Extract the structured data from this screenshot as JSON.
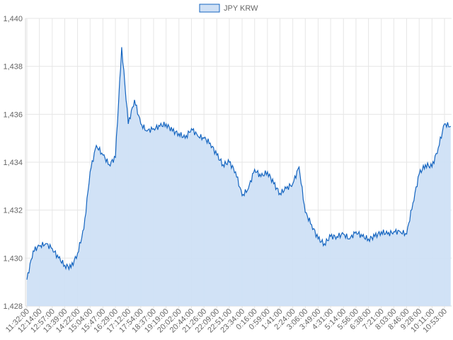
{
  "chart_data": {
    "type": "area",
    "title": "",
    "xlabel": "",
    "ylabel": "",
    "ylim": [
      1428,
      1440
    ],
    "y_ticks": [
      "1,428",
      "1,430",
      "1,432",
      "1,434",
      "1,436",
      "1,438",
      "1,440"
    ],
    "grid": true,
    "legend_position": "top-center",
    "colors": {
      "line": "#1565c0",
      "fill": "#cfe0f5"
    },
    "x_ticks": [
      "11:32:00",
      "12:14:00",
      "12:57:00",
      "13:39:00",
      "14:22:00",
      "15:04:00",
      "15:47:00",
      "16:29:00",
      "17:12:00",
      "17:54:00",
      "18:37:00",
      "19:19:00",
      "20:02:00",
      "20:44:00",
      "21:26:00",
      "22:09:00",
      "22:51:00",
      "23:34:00",
      "0:16:00",
      "0:59:00",
      "1:41:00",
      "2:24:00",
      "3:06:00",
      "3:49:00",
      "4:31:00",
      "5:14:00",
      "5:56:00",
      "6:38:00",
      "7:21:00",
      "8:03:00",
      "8:46:00",
      "9:28:00",
      "10:11:00",
      "10:53:00"
    ],
    "series": [
      {
        "name": "JPY KRW",
        "x": [
          "11:32:00",
          "11:53:00",
          "12:14:00",
          "12:35:00",
          "12:57:00",
          "13:18:00",
          "13:39:00",
          "14:00:00",
          "14:22:00",
          "14:43:00",
          "15:04:00",
          "15:25:00",
          "15:47:00",
          "16:08:00",
          "16:29:00",
          "16:50:00",
          "17:12:00",
          "17:33:00",
          "17:54:00",
          "18:15:00",
          "18:37:00",
          "18:58:00",
          "19:19:00",
          "19:40:00",
          "20:02:00",
          "20:23:00",
          "20:44:00",
          "21:05:00",
          "21:26:00",
          "21:47:00",
          "22:09:00",
          "22:30:00",
          "22:51:00",
          "23:12:00",
          "23:34:00",
          "23:55:00",
          "0:16:00",
          "0:37:00",
          "0:59:00",
          "1:20:00",
          "1:41:00",
          "2:02:00",
          "2:24:00",
          "2:45:00",
          "3:06:00",
          "3:27:00",
          "3:49:00",
          "4:10:00",
          "4:31:00",
          "4:52:00",
          "5:14:00",
          "5:35:00",
          "5:56:00",
          "6:17:00",
          "6:38:00",
          "6:59:00",
          "7:21:00",
          "7:42:00",
          "8:03:00",
          "8:24:00",
          "8:46:00",
          "9:07:00",
          "9:28:00",
          "9:49:00",
          "10:11:00",
          "10:32:00",
          "10:53:00",
          "11:14:00"
        ],
        "values": [
          1429.1,
          1430.3,
          1430.5,
          1430.6,
          1430.4,
          1430.0,
          1429.7,
          1429.6,
          1430.2,
          1431.2,
          1433.6,
          1434.7,
          1434.3,
          1433.9,
          1434.2,
          1438.8,
          1435.6,
          1436.6,
          1435.6,
          1435.3,
          1435.4,
          1435.5,
          1435.6,
          1435.3,
          1435.2,
          1435.0,
          1435.4,
          1435.1,
          1435.0,
          1434.8,
          1434.3,
          1433.9,
          1434.0,
          1433.6,
          1432.6,
          1432.9,
          1433.7,
          1433.4,
          1433.6,
          1433.1,
          1432.7,
          1432.9,
          1433.1,
          1433.8,
          1431.9,
          1431.4,
          1430.8,
          1430.6,
          1430.9,
          1430.9,
          1431.0,
          1430.8,
          1431.1,
          1430.9,
          1430.8,
          1430.9,
          1431.1,
          1431.0,
          1431.1,
          1431.1,
          1431.0,
          1432.3,
          1433.5,
          1433.9,
          1433.8,
          1434.6,
          1435.6,
          1435.5
        ]
      }
    ]
  }
}
